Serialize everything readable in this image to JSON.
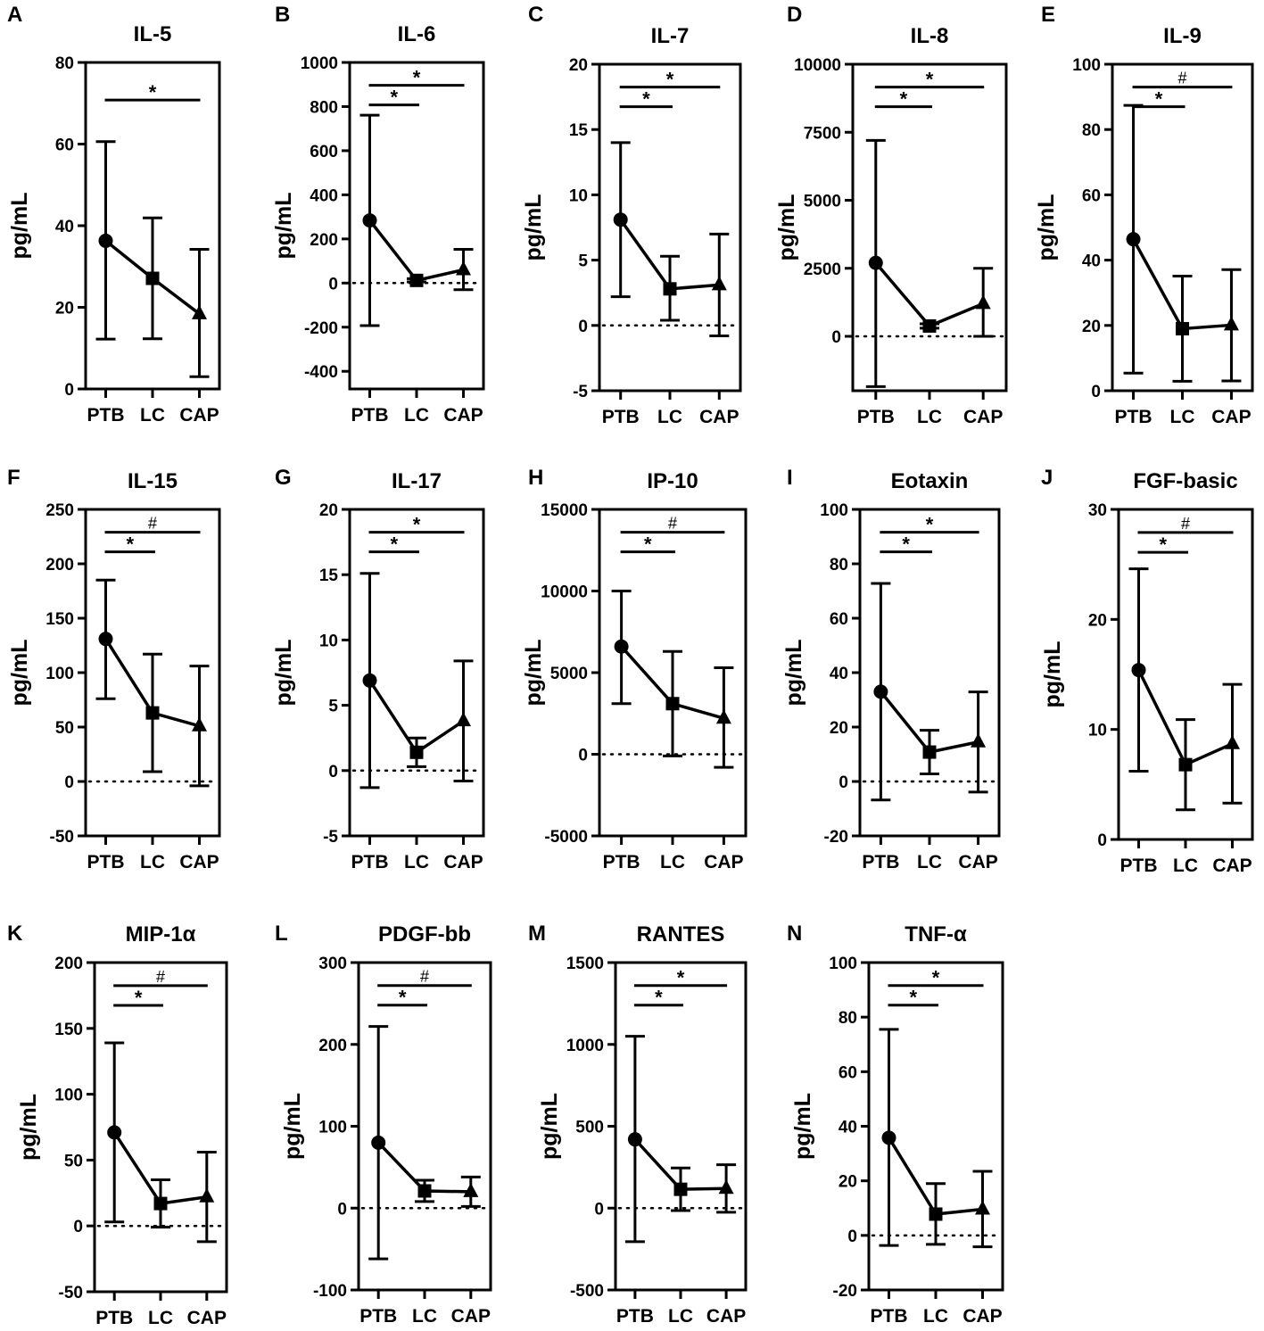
{
  "chart_data": [
    {
      "panel": "A",
      "title": "IL-5",
      "type": "line",
      "categories": [
        "PTB",
        "LC",
        "CAP"
      ],
      "means": [
        36.3,
        27.1,
        18.4
      ],
      "lower": [
        12.2,
        12.3,
        3.0
      ],
      "upper": [
        60.6,
        41.9,
        34.2
      ],
      "ylabel": "pg/mL",
      "ylim": [
        0,
        80
      ],
      "yticks": [
        0,
        20,
        40,
        60,
        80
      ],
      "zero_line": false,
      "significance": [
        {
          "from": 0,
          "to": 2,
          "label": "*"
        }
      ]
    },
    {
      "panel": "B",
      "title": "IL-6",
      "type": "line",
      "categories": [
        "PTB",
        "LC",
        "CAP"
      ],
      "means": [
        284,
        12,
        60
      ],
      "lower": [
        -193,
        5,
        -30
      ],
      "upper": [
        761,
        20,
        153
      ],
      "ylabel": "pg/mL",
      "ylim": [
        -480,
        1000
      ],
      "yticks": [
        -400,
        -200,
        0,
        200,
        400,
        600,
        800,
        1000
      ],
      "zero_line": true,
      "significance": [
        {
          "from": 0,
          "to": 1,
          "label": "*"
        },
        {
          "from": 0,
          "to": 2,
          "label": "*"
        }
      ]
    },
    {
      "panel": "C",
      "title": "IL-7",
      "type": "line",
      "categories": [
        "PTB",
        "LC",
        "CAP"
      ],
      "means": [
        8.1,
        2.8,
        3.1
      ],
      "lower": [
        2.2,
        0.4,
        -0.8
      ],
      "upper": [
        14.0,
        5.3,
        7.0
      ],
      "ylabel": "pg/mL",
      "ylim": [
        -5,
        20
      ],
      "yticks": [
        -5,
        0,
        5,
        10,
        15,
        20
      ],
      "zero_line": true,
      "significance": [
        {
          "from": 0,
          "to": 1,
          "label": "*"
        },
        {
          "from": 0,
          "to": 2,
          "label": "*"
        }
      ]
    },
    {
      "panel": "D",
      "title": "IL-8",
      "type": "line",
      "categories": [
        "PTB",
        "LC",
        "CAP"
      ],
      "means": [
        2700,
        380,
        1200
      ],
      "lower": [
        -1850,
        300,
        0
      ],
      "upper": [
        7200,
        460,
        2500
      ],
      "ylabel": "pg/mL",
      "ylim": [
        -2000,
        10000
      ],
      "yticks": [
        0,
        2500,
        5000,
        7500,
        10000
      ],
      "zero_line": true,
      "significance": [
        {
          "from": 0,
          "to": 1,
          "label": "*"
        },
        {
          "from": 0,
          "to": 2,
          "label": "*"
        }
      ]
    },
    {
      "panel": "E",
      "title": "IL-9",
      "type": "line",
      "categories": [
        "PTB",
        "LC",
        "CAP"
      ],
      "means": [
        46.4,
        19.0,
        20.1
      ],
      "lower": [
        5.4,
        2.9,
        3.0
      ],
      "upper": [
        87.4,
        35.1,
        37.1
      ],
      "ylabel": "pg/mL",
      "ylim": [
        0,
        100
      ],
      "yticks": [
        0,
        20,
        40,
        60,
        80,
        100
      ],
      "zero_line": false,
      "significance": [
        {
          "from": 0,
          "to": 1,
          "label": "*"
        },
        {
          "from": 0,
          "to": 2,
          "label": "#"
        }
      ]
    },
    {
      "panel": "F",
      "title": "IL-15",
      "type": "line",
      "categories": [
        "PTB",
        "LC",
        "CAP"
      ],
      "means": [
        131,
        63,
        51
      ],
      "lower": [
        76,
        9,
        -4
      ],
      "upper": [
        185,
        117,
        106
      ],
      "ylabel": "pg/mL",
      "ylim": [
        -50,
        250
      ],
      "yticks": [
        -50,
        0,
        50,
        100,
        150,
        200,
        250
      ],
      "zero_line": true,
      "significance": [
        {
          "from": 0,
          "to": 1,
          "label": "*"
        },
        {
          "from": 0,
          "to": 2,
          "label": "#"
        }
      ]
    },
    {
      "panel": "G",
      "title": "IL-17",
      "type": "line",
      "categories": [
        "PTB",
        "LC",
        "CAP"
      ],
      "means": [
        6.9,
        1.4,
        3.8
      ],
      "lower": [
        -1.3,
        0.3,
        -0.8
      ],
      "upper": [
        15.1,
        2.5,
        8.4
      ],
      "ylabel": "pg/mL",
      "ylim": [
        -5,
        20
      ],
      "yticks": [
        -5,
        0,
        5,
        10,
        15,
        20
      ],
      "zero_line": true,
      "significance": [
        {
          "from": 0,
          "to": 1,
          "label": "*"
        },
        {
          "from": 0,
          "to": 2,
          "label": "*"
        }
      ]
    },
    {
      "panel": "H",
      "title": "IP-10",
      "type": "line",
      "categories": [
        "PTB",
        "LC",
        "CAP"
      ],
      "means": [
        6600,
        3100,
        2200
      ],
      "lower": [
        3100,
        -100,
        -800
      ],
      "upper": [
        10000,
        6300,
        5300
      ],
      "ylabel": "pg/mL",
      "ylim": [
        -5000,
        15000
      ],
      "yticks": [
        -5000,
        0,
        5000,
        10000,
        15000
      ],
      "zero_line": true,
      "significance": [
        {
          "from": 0,
          "to": 1,
          "label": "*"
        },
        {
          "from": 0,
          "to": 2,
          "label": "#"
        }
      ]
    },
    {
      "panel": "I",
      "title": "Eotaxin",
      "type": "line",
      "categories": [
        "PTB",
        "LC",
        "CAP"
      ],
      "means": [
        33.0,
        10.8,
        14.5
      ],
      "lower": [
        -6.8,
        2.8,
        -3.9
      ],
      "upper": [
        72.8,
        18.8,
        32.9
      ],
      "ylabel": "pg/mL",
      "ylim": [
        -20,
        100
      ],
      "yticks": [
        -20,
        0,
        20,
        40,
        60,
        80,
        100
      ],
      "zero_line": true,
      "significance": [
        {
          "from": 0,
          "to": 1,
          "label": "*"
        },
        {
          "from": 0,
          "to": 2,
          "label": "*"
        }
      ]
    },
    {
      "panel": "J",
      "title": "FGF-basic",
      "type": "line",
      "categories": [
        "PTB",
        "LC",
        "CAP"
      ],
      "means": [
        15.4,
        6.8,
        8.7
      ],
      "lower": [
        6.2,
        2.7,
        3.3
      ],
      "upper": [
        24.6,
        10.9,
        14.1
      ],
      "ylabel": "pg/mL",
      "ylim": [
        0,
        30
      ],
      "yticks": [
        0,
        10,
        20,
        30
      ],
      "zero_line": false,
      "significance": [
        {
          "from": 0,
          "to": 1,
          "label": "*"
        },
        {
          "from": 0,
          "to": 2,
          "label": "#"
        }
      ]
    },
    {
      "panel": "K",
      "title": "MIP-1α",
      "type": "line",
      "categories": [
        "PTB",
        "LC",
        "CAP"
      ],
      "means": [
        71,
        17,
        22
      ],
      "lower": [
        3,
        -1,
        -12
      ],
      "upper": [
        139,
        35,
        56
      ],
      "ylabel": "pg/mL",
      "ylim": [
        -50,
        200
      ],
      "yticks": [
        -50,
        0,
        50,
        100,
        150,
        200
      ],
      "zero_line": true,
      "significance": [
        {
          "from": 0,
          "to": 1,
          "label": "*"
        },
        {
          "from": 0,
          "to": 2,
          "label": "#"
        }
      ]
    },
    {
      "panel": "L",
      "title": "PDGF-bb",
      "type": "line",
      "categories": [
        "PTB",
        "LC",
        "CAP"
      ],
      "means": [
        80,
        21,
        20
      ],
      "lower": [
        -62,
        8,
        2
      ],
      "upper": [
        222,
        34,
        38
      ],
      "ylabel": "pg/mL",
      "ylim": [
        -100,
        300
      ],
      "yticks": [
        -100,
        0,
        100,
        200,
        300
      ],
      "zero_line": true,
      "significance": [
        {
          "from": 0,
          "to": 1,
          "label": "*"
        },
        {
          "from": 0,
          "to": 2,
          "label": "#"
        }
      ]
    },
    {
      "panel": "M",
      "title": "RANTES",
      "type": "line",
      "categories": [
        "PTB",
        "LC",
        "CAP"
      ],
      "means": [
        420,
        115,
        120
      ],
      "lower": [
        -205,
        -15,
        -25
      ],
      "upper": [
        1050,
        245,
        265
      ],
      "ylabel": "pg/mL",
      "ylim": [
        -500,
        1500
      ],
      "yticks": [
        -500,
        0,
        500,
        1000,
        1500
      ],
      "zero_line": true,
      "significance": [
        {
          "from": 0,
          "to": 1,
          "label": "*"
        },
        {
          "from": 0,
          "to": 2,
          "label": "*"
        }
      ]
    },
    {
      "panel": "N",
      "title": "TNF-α",
      "type": "line",
      "categories": [
        "PTB",
        "LC",
        "CAP"
      ],
      "means": [
        35.8,
        7.8,
        9.6
      ],
      "lower": [
        -3.7,
        -3.3,
        -4.2
      ],
      "upper": [
        75.5,
        19.0,
        23.5
      ],
      "ylabel": "pg/mL",
      "ylim": [
        -20,
        100
      ],
      "yticks": [
        -20,
        0,
        20,
        40,
        60,
        80,
        100
      ],
      "zero_line": true,
      "significance": [
        {
          "from": 0,
          "to": 1,
          "label": "*"
        },
        {
          "from": 0,
          "to": 2,
          "label": "*"
        }
      ]
    }
  ]
}
